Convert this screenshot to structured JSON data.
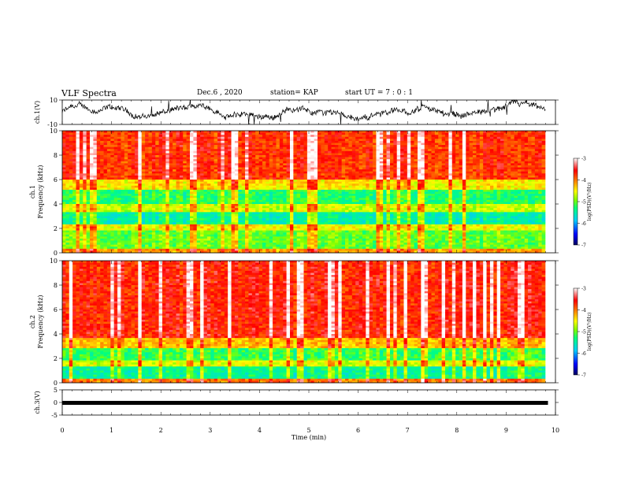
{
  "header": {
    "title": "VLF Spectra",
    "date": "Dec.6 , 2020",
    "station": "station= KAP",
    "start": "start UT = 7 : 0 : 1"
  },
  "chart_data": [
    {
      "type": "line",
      "name": "ch1-waveform",
      "ylabel": "ch.1(V)",
      "ylim": [
        -10,
        10
      ],
      "y_ticks": [
        "10",
        "-10"
      ],
      "xlim": [
        0,
        10
      ],
      "data_extent_min": [
        0,
        9.8
      ],
      "line_color": "#000000"
    },
    {
      "type": "heatmap",
      "name": "ch1-spectrogram",
      "ylabel": "ch.1\nFrequency (kHz)",
      "ylim": [
        0,
        10
      ],
      "y_ticks": [
        "0",
        "2",
        "4",
        "6",
        "8",
        "10"
      ],
      "xlim": [
        0,
        10
      ],
      "colorbar": {
        "label": "log(PSD)(V²/Hz)",
        "range": [
          -7,
          -3
        ],
        "ticks": [
          "-3",
          "-4",
          "-5",
          "-6",
          "-7"
        ],
        "colors": [
          "#000080",
          "#0000ff",
          "#00ccff",
          "#00ff80",
          "#80ff00",
          "#ffff00",
          "#ff8000",
          "#ff0000",
          "#ffffff"
        ]
      }
    },
    {
      "type": "heatmap",
      "name": "ch2-spectrogram",
      "ylabel": "ch.2\nFrequency (kHz)",
      "ylim": [
        0,
        10
      ],
      "y_ticks": [
        "0",
        "2",
        "4",
        "6",
        "8",
        "10"
      ],
      "xlim": [
        0,
        10
      ],
      "colorbar": {
        "label": "log(PSD)(V²/Hz)",
        "range": [
          -7,
          -3
        ],
        "ticks": [
          "-3",
          "-4",
          "-5",
          "-6",
          "-7"
        ]
      }
    },
    {
      "type": "line",
      "name": "ch3-waveform",
      "ylabel": "ch.3(V)",
      "ylim": [
        -5,
        5
      ],
      "y_ticks": [
        "5",
        "0",
        "-5"
      ],
      "xlim": [
        0,
        10
      ],
      "xlabel": "Time (min)",
      "x_ticks": [
        "0",
        "1",
        "2",
        "3",
        "4",
        "5",
        "6",
        "7",
        "8",
        "9",
        "10"
      ],
      "line_color": "#000000"
    }
  ]
}
